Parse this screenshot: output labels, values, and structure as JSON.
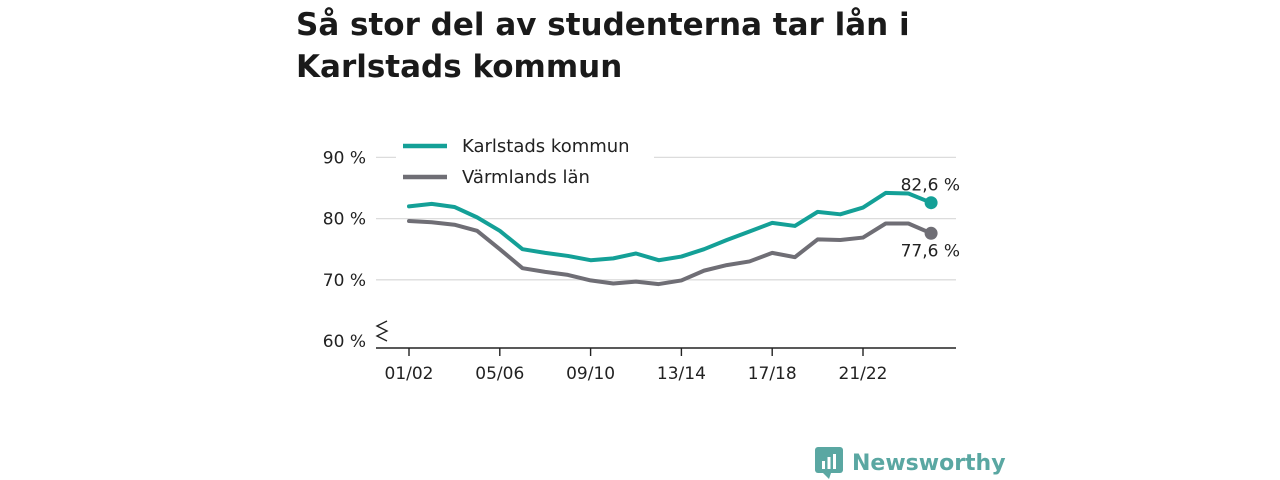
{
  "title": "Så stor del av studenterna tar lån i Karlstads kommun",
  "brand": {
    "name": "Newsworthy",
    "icon": "newsworthy-logo-icon",
    "color": "#5aa7a2"
  },
  "chart_data": {
    "type": "line",
    "x": [
      "01/02",
      "02/03",
      "03/04",
      "04/05",
      "05/06",
      "06/07",
      "07/08",
      "08/09",
      "09/10",
      "10/11",
      "11/12",
      "12/13",
      "13/14",
      "14/15",
      "15/16",
      "16/17",
      "17/18",
      "18/19",
      "19/20",
      "20/21",
      "21/22",
      "22/23",
      "23/24",
      "24/25"
    ],
    "x_tick_labels": [
      "01/02",
      "05/06",
      "09/10",
      "13/14",
      "17/18",
      "21/22"
    ],
    "y_tick_labels": [
      "60 %",
      "70 %",
      "80 %",
      "90 %"
    ],
    "ylim": [
      60,
      92
    ],
    "y_axis_break": true,
    "grid": true,
    "legend_position": "top-left",
    "series": [
      {
        "name": "Karlstads kommun",
        "color": "#14a097",
        "values": [
          82.0,
          82.4,
          81.9,
          80.2,
          78.0,
          75.0,
          74.4,
          73.9,
          73.2,
          73.5,
          74.3,
          73.2,
          73.8,
          75.0,
          76.5,
          77.9,
          79.3,
          78.8,
          81.1,
          80.7,
          81.8,
          84.2,
          84.1,
          82.6
        ],
        "end_label": "82,6 %"
      },
      {
        "name": "Värmlands län",
        "color": "#6f6e75",
        "values": [
          79.6,
          79.4,
          79.0,
          78.0,
          75.0,
          71.9,
          71.3,
          70.8,
          69.9,
          69.4,
          69.7,
          69.3,
          69.9,
          71.5,
          72.4,
          73.0,
          74.4,
          73.7,
          76.6,
          76.5,
          76.9,
          79.2,
          79.2,
          77.6
        ],
        "end_label": "77,6 %"
      }
    ]
  }
}
